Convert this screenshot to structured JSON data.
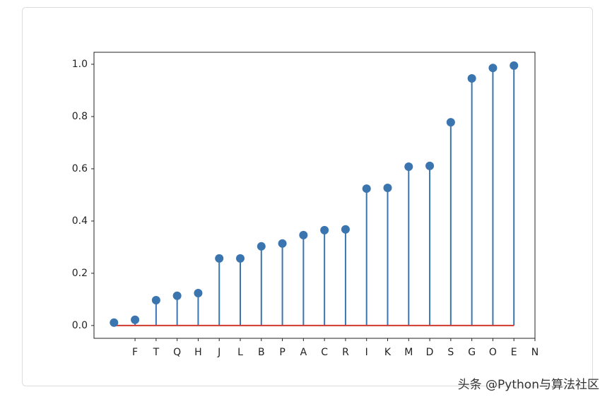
{
  "chart_data": {
    "type": "stem",
    "x": [
      0,
      1,
      2,
      3,
      4,
      5,
      6,
      7,
      8,
      9,
      10,
      11,
      12,
      13,
      14,
      15,
      16,
      17,
      18,
      19
    ],
    "values": [
      0.011,
      0.022,
      0.097,
      0.114,
      0.124,
      0.257,
      0.257,
      0.303,
      0.314,
      0.346,
      0.365,
      0.368,
      0.524,
      0.527,
      0.608,
      0.611,
      0.778,
      0.946,
      0.986,
      0.995
    ],
    "color": "#3a75b0",
    "baseline_color": "#d03a2c",
    "xlim": [
      -0.95,
      20
    ],
    "ylim": [
      -0.049,
      1.046
    ],
    "xticks": [
      {
        "value": 1,
        "label": "F"
      },
      {
        "value": 2,
        "label": "T"
      },
      {
        "value": 3,
        "label": "Q"
      },
      {
        "value": 4,
        "label": "H"
      },
      {
        "value": 5,
        "label": "J"
      },
      {
        "value": 6,
        "label": "L"
      },
      {
        "value": 7,
        "label": "B"
      },
      {
        "value": 8,
        "label": "P"
      },
      {
        "value": 9,
        "label": "A"
      },
      {
        "value": 10,
        "label": "C"
      },
      {
        "value": 11,
        "label": "R"
      },
      {
        "value": 12,
        "label": "I"
      },
      {
        "value": 13,
        "label": "K"
      },
      {
        "value": 14,
        "label": "M"
      },
      {
        "value": 15,
        "label": "D"
      },
      {
        "value": 16,
        "label": "S"
      },
      {
        "value": 17,
        "label": "G"
      },
      {
        "value": 18,
        "label": "O"
      },
      {
        "value": 19,
        "label": "E"
      },
      {
        "value": 20,
        "label": "N"
      }
    ],
    "yticks": [
      {
        "value": 0,
        "label": "0.0"
      },
      {
        "value": 0.2,
        "label": "0.2"
      },
      {
        "value": 0.4,
        "label": "0.4"
      },
      {
        "value": 0.6,
        "label": "0.6"
      },
      {
        "value": 0.8,
        "label": "0.8"
      },
      {
        "value": 1,
        "label": "1.0"
      }
    ],
    "grid": false
  },
  "watermark": "头条 @Python与算法社区"
}
